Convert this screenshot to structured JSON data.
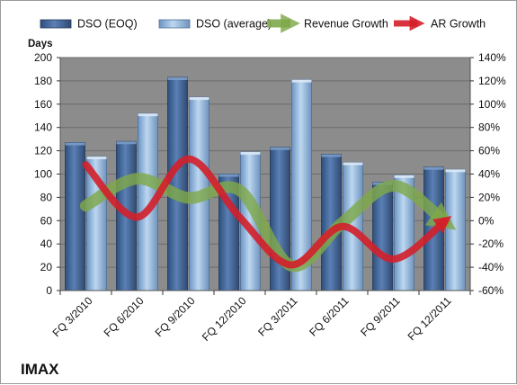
{
  "chart_data": {
    "type": "bar",
    "categories": [
      "FQ 3/2010",
      "FQ 6/2010",
      "FQ 9/2010",
      "FQ 12/2010",
      "FQ 3/2011",
      "FQ 6/2011",
      "FQ 9/2011",
      "FQ 12/2011"
    ],
    "series": [
      {
        "name": "DSO (EOQ)",
        "type": "bar",
        "axis": "left",
        "values": [
          127,
          128,
          183,
          100,
          123,
          117,
          93,
          106
        ]
      },
      {
        "name": "DSO (average)",
        "type": "bar",
        "axis": "left",
        "values": [
          115,
          152,
          166,
          119,
          181,
          110,
          99,
          104
        ]
      },
      {
        "name": "Revenue Growth",
        "type": "line",
        "axis": "right",
        "values": [
          0.128,
          0.36,
          0.195,
          0.26,
          -0.385,
          -0.02,
          0.3,
          -0.01
        ]
      },
      {
        "name": "AR Growth",
        "type": "line",
        "axis": "right",
        "values": [
          0.48,
          0.03,
          0.53,
          0.03,
          -0.38,
          -0.05,
          -0.33,
          -0.005
        ]
      }
    ],
    "y_left": {
      "label": "Days",
      "min": 0,
      "max": 200,
      "ticks": [
        "0",
        "20",
        "40",
        "60",
        "80",
        "100",
        "120",
        "140",
        "160",
        "180",
        "200"
      ]
    },
    "y_right": {
      "min": -0.6,
      "max": 1.4,
      "ticks": [
        "-60%",
        "-40%",
        "-20%",
        "0%",
        "20%",
        "40%",
        "60%",
        "80%",
        "100%",
        "120%",
        "140%"
      ]
    },
    "grid": true,
    "legend_position": "top",
    "colors": {
      "dso_eoq": "#4a6fa5",
      "dso_average": "#9dc3e6",
      "revenue_growth": "#7fa84a",
      "ar_growth": "#d41f2a",
      "plot_background": "#8c8c8c",
      "gridline": "#6b6b6b"
    }
  },
  "footer": {
    "company": "IMAX"
  }
}
